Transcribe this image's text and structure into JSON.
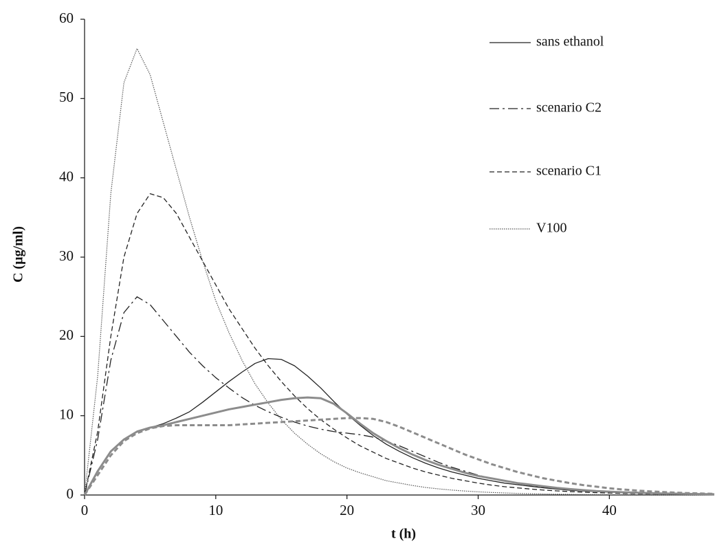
{
  "chart_data": {
    "type": "line",
    "x_label": "t (h)",
    "y_label": "C (µg/ml)",
    "xlim": [
      0,
      48
    ],
    "ylim": [
      0,
      60
    ],
    "xticks": [
      0,
      10,
      20,
      30,
      40
    ],
    "yticks": [
      0,
      10,
      20,
      30,
      40,
      50,
      60
    ],
    "grid": false,
    "legend": "upper right",
    "x": [
      0,
      1,
      2,
      3,
      4,
      5,
      6,
      7,
      8,
      9,
      10,
      11,
      12,
      13,
      14,
      15,
      16,
      17,
      18,
      19,
      20,
      21,
      22,
      23,
      24,
      25,
      26,
      27,
      28,
      29,
      30,
      31,
      32,
      33,
      34,
      35,
      36,
      37,
      38,
      39,
      40,
      41,
      42,
      43,
      44,
      45,
      46,
      47,
      48
    ],
    "series": [
      {
        "name": "sans ethanol",
        "color": "#222222",
        "dash": "solid",
        "width": 1.3,
        "values": [
          0,
          3,
          5.5,
          7,
          8,
          8.5,
          9,
          9.7,
          10.5,
          11.7,
          13,
          14.3,
          15.5,
          16.6,
          17.2,
          17.1,
          16.3,
          15,
          13.5,
          11.8,
          10.2,
          8.8,
          7.5,
          6.4,
          5.5,
          4.7,
          4,
          3.4,
          2.9,
          2.5,
          2.1,
          1.8,
          1.5,
          1.3,
          1.1,
          0.9,
          0.75,
          0.6,
          0.5,
          0.42,
          0.35,
          0.3,
          0.25,
          0.2,
          0.17,
          0.14,
          0.12,
          0.1,
          0.08
        ]
      },
      {
        "name": "scenario C2",
        "color": "#222222",
        "dash": "dashdot",
        "width": 1.3,
        "values": [
          0,
          7,
          17,
          23,
          25,
          24,
          22,
          20,
          18,
          16.3,
          14.8,
          13.5,
          12.3,
          11.3,
          10.5,
          9.8,
          9.2,
          8.7,
          8.3,
          8,
          7.8,
          7.6,
          7.3,
          6.8,
          6.2,
          5.5,
          4.8,
          4.1,
          3.5,
          3,
          2.5,
          2.1,
          1.8,
          1.5,
          1.2,
          1,
          0.85,
          0.7,
          0.58,
          0.48,
          0.4,
          0.33,
          0.27,
          0.22,
          0.18,
          0.15,
          0.12,
          0.1,
          0.08
        ]
      },
      {
        "name": "scenario C1",
        "color": "#222222",
        "dash": "dashed",
        "width": 1.3,
        "values": [
          0,
          8,
          20,
          30,
          35.5,
          38,
          37.5,
          35.5,
          32.5,
          29.5,
          26.5,
          23.5,
          21,
          18.5,
          16.3,
          14.3,
          12.5,
          10.9,
          9.5,
          8.3,
          7.2,
          6.2,
          5.4,
          4.6,
          4,
          3.4,
          2.9,
          2.5,
          2.1,
          1.8,
          1.5,
          1.25,
          1.05,
          0.9,
          0.75,
          0.62,
          0.52,
          0.43,
          0.36,
          0.3,
          0.25,
          0.2,
          0.17,
          0.14,
          0.12,
          0.1,
          0.08,
          0.07,
          0.06
        ]
      },
      {
        "name": "V100",
        "color": "#555555",
        "dash": "dotted",
        "width": 1.2,
        "values": [
          0,
          15,
          38,
          52,
          56.3,
          53,
          47,
          41,
          35,
          29.5,
          24.5,
          20.5,
          17,
          14,
          11.6,
          9.5,
          7.8,
          6.4,
          5.2,
          4.2,
          3.4,
          2.8,
          2.3,
          1.8,
          1.5,
          1.2,
          0.95,
          0.77,
          0.62,
          0.5,
          0.4,
          0.32,
          0.26,
          0.2,
          0.16,
          0.13,
          0.1,
          0.08,
          0.06,
          0.05,
          0.04,
          0.03,
          0.03,
          0.02,
          0.02,
          0.01,
          0.01,
          0.01,
          0.01
        ]
      },
      {
        "color": "#8c8c8c",
        "dash": "solid",
        "width": 3,
        "values": [
          0,
          3,
          5.5,
          7,
          8,
          8.5,
          8.8,
          9.2,
          9.6,
          10,
          10.4,
          10.8,
          11.1,
          11.4,
          11.7,
          12,
          12.2,
          12.3,
          12.2,
          11.5,
          10.3,
          9,
          7.8,
          6.8,
          5.9,
          5.1,
          4.4,
          3.8,
          3.3,
          2.8,
          2.4,
          2.1,
          1.8,
          1.5,
          1.3,
          1.1,
          0.9,
          0.75,
          0.62,
          0.5,
          0.42,
          0.35,
          0.3,
          0.25,
          0.2,
          0.17,
          0.14,
          0.12,
          0.1
        ]
      },
      {
        "color": "#8c8c8c",
        "dash": "dashed",
        "width": 3,
        "values": [
          0,
          2.5,
          5,
          6.8,
          7.8,
          8.4,
          8.7,
          8.8,
          8.8,
          8.8,
          8.8,
          8.8,
          8.9,
          9,
          9.1,
          9.2,
          9.3,
          9.4,
          9.5,
          9.6,
          9.7,
          9.7,
          9.6,
          9.2,
          8.6,
          7.9,
          7.2,
          6.5,
          5.8,
          5.1,
          4.5,
          3.9,
          3.4,
          2.9,
          2.5,
          2.1,
          1.8,
          1.5,
          1.25,
          1.05,
          0.85,
          0.7,
          0.58,
          0.47,
          0.38,
          0.3,
          0.24,
          0.19,
          0.15
        ]
      }
    ]
  }
}
